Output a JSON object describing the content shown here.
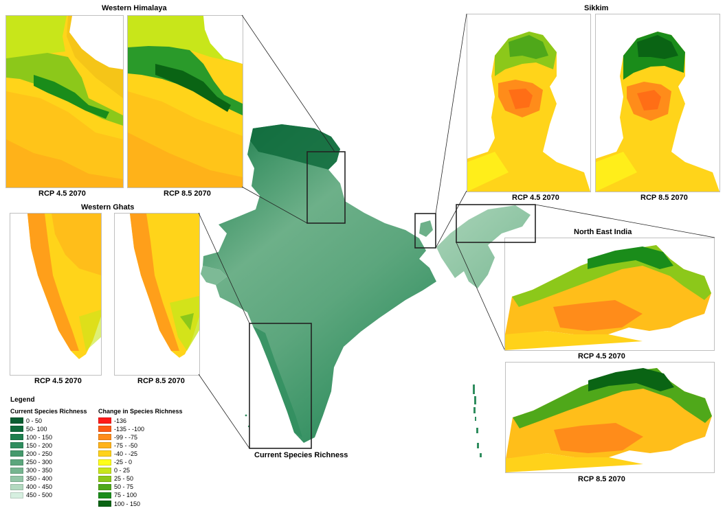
{
  "titles": {
    "western_himalaya": "Western Himalaya",
    "western_ghats": "Western Ghats",
    "sikkim": "Sikkim",
    "north_east_india": "North East India",
    "main_map": "Current Species Richness"
  },
  "captions": {
    "wh_rcp45": "RCP 4.5 2070",
    "wh_rcp85": "RCP 8.5 2070",
    "wg_rcp45": "RCP 4.5 2070",
    "wg_rcp85": "RCP 8.5 2070",
    "sk_rcp45": "RCP 4.5 2070",
    "sk_rcp85": "RCP 8.5 2070",
    "ne_rcp45": "RCP 4.5 2070",
    "ne_rcp85": "RCP 8.5 2070"
  },
  "legend": {
    "title": "Legend",
    "current_title": "Current Species Richness",
    "change_title": "Change in Species Richness",
    "current_classes": [
      {
        "label": "0 - 50",
        "color": "#0a5e32"
      },
      {
        "label": "50- 100",
        "color": "#0f6b3c"
      },
      {
        "label": "100 - 150",
        "color": "#1f7f4f"
      },
      {
        "label": "150 - 200",
        "color": "#2f8d5e"
      },
      {
        "label": "200 - 250",
        "color": "#45996c"
      },
      {
        "label": "250 - 300",
        "color": "#5ca67d"
      },
      {
        "label": "300 - 350",
        "color": "#76b590"
      },
      {
        "label": "350 - 400",
        "color": "#93c6a7"
      },
      {
        "label": "400 - 450",
        "color": "#b3d9c0"
      },
      {
        "label": "450 - 500",
        "color": "#d6efe0"
      }
    ],
    "change_classes": [
      {
        "label": "-136",
        "color": "#ff1a1a"
      },
      {
        "label": "-135 - -100",
        "color": "#ff5a14"
      },
      {
        "label": "-99 - -75",
        "color": "#ff8c1a"
      },
      {
        "label": "-75 - -50",
        "color": "#ffb31a"
      },
      {
        "label": "-40 - -25",
        "color": "#ffd21a"
      },
      {
        "label": "-25 - 0",
        "color": "#ffff1a"
      },
      {
        "label": "0 - 25",
        "color": "#c8e61a"
      },
      {
        "label": "25 - 50",
        "color": "#8cc81a"
      },
      {
        "label": "50 - 75",
        "color": "#4fa81a"
      },
      {
        "label": "75 - 100",
        "color": "#1a8c1a"
      },
      {
        "label": "100 - 150",
        "color": "#0a6414"
      }
    ]
  }
}
